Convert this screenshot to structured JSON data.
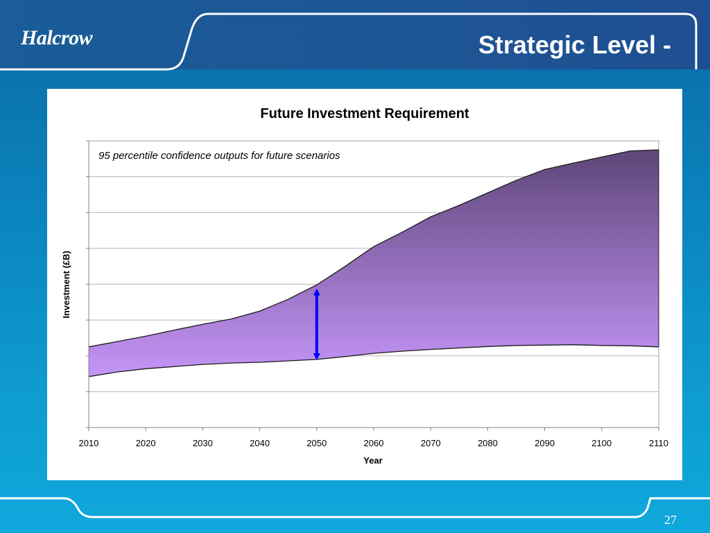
{
  "header": {
    "logo_text": "Halcrow",
    "title": "Strategic Level -"
  },
  "footer": {
    "page_number": "27"
  },
  "colors": {
    "background_top": "#0a6aa8",
    "background_bottom": "#10a8dc",
    "area_top": "#5e4678",
    "area_bottom": "#c595f8",
    "arrow": "#0000ff"
  },
  "chart_data": {
    "type": "area",
    "title": "Future Investment Requirement",
    "xlabel": "Year",
    "ylabel": "Investment (£B)",
    "annotation": "95 percentile confidence outputs for future scenarios",
    "xlim": [
      2010,
      2110
    ],
    "x_ticks": [
      "2010",
      "2020",
      "2030",
      "2040",
      "2050",
      "2060",
      "2070",
      "2080",
      "2090",
      "2100",
      "2110"
    ],
    "y_gridlines": 8,
    "y_tick_labels_shown": false,
    "grid": true,
    "x": [
      2010,
      2015,
      2020,
      2025,
      2030,
      2035,
      2040,
      2045,
      2050,
      2055,
      2060,
      2065,
      2070,
      2075,
      2080,
      2085,
      2090,
      2095,
      2100,
      2105,
      2110
    ],
    "series": [
      {
        "role": "upper_bound",
        "values": [
          2.25,
          2.4,
          2.55,
          2.72,
          2.88,
          3.03,
          3.25,
          3.58,
          3.98,
          4.5,
          5.05,
          5.45,
          5.88,
          6.2,
          6.55,
          6.9,
          7.2,
          7.38,
          7.55,
          7.72,
          7.75
        ]
      },
      {
        "role": "lower_bound",
        "values": [
          1.42,
          1.55,
          1.64,
          1.7,
          1.76,
          1.8,
          1.82,
          1.86,
          1.9,
          1.98,
          2.07,
          2.13,
          2.18,
          2.22,
          2.26,
          2.29,
          2.3,
          2.31,
          2.29,
          2.28,
          2.25
        ]
      }
    ],
    "range_arrow": {
      "x": 2050,
      "from": 1.86,
      "to": 3.9
    }
  }
}
